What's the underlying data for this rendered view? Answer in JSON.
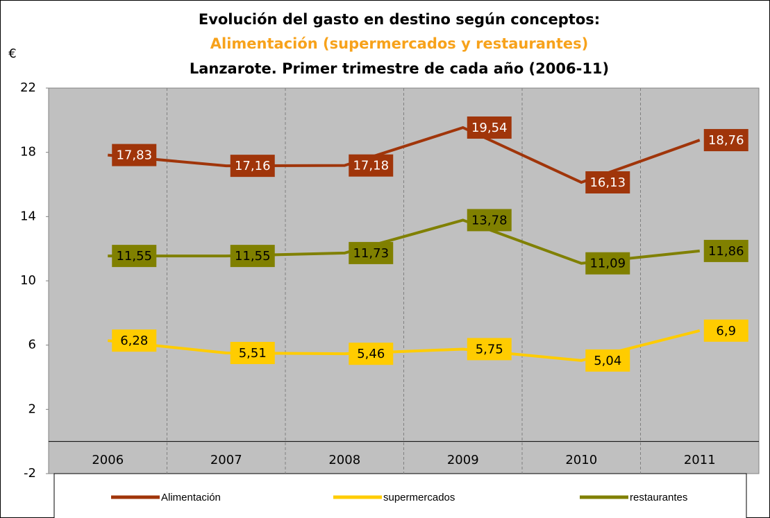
{
  "chart_data": {
    "type": "line",
    "title": "Evolución del gasto en destino según conceptos:",
    "subtitle": "Alimentación (supermercados y restaurantes)",
    "subtitle_2": "Lanzarote. Primer trimestre de cada año (2006-11)",
    "y_label": "€",
    "categories": [
      "2006",
      "2007",
      "2008",
      "2009",
      "2010",
      "2011"
    ],
    "series": [
      {
        "name": "Alimentación",
        "color": "#a0350a",
        "label_text_color": "#ffffff",
        "values": [
          17.83,
          17.16,
          17.18,
          19.54,
          16.13,
          18.76
        ],
        "value_labels": [
          "17,83",
          "17,16",
          "17,18",
          "19,54",
          "16,13",
          "18,76"
        ]
      },
      {
        "name": "supermercados",
        "color": "#ffcc00",
        "label_text_color": "#000000",
        "values": [
          6.28,
          5.51,
          5.46,
          5.75,
          5.04,
          6.9
        ],
        "value_labels": [
          "6,28",
          "5,51",
          "5,46",
          "5,75",
          "5,04",
          "6,9"
        ]
      },
      {
        "name": "restaurantes",
        "color": "#808000",
        "label_text_color": "#000000",
        "values": [
          11.55,
          11.55,
          11.73,
          13.78,
          11.09,
          11.86
        ],
        "value_labels": [
          "11,55",
          "11,55",
          "11,73",
          "13,78",
          "11,09",
          "11,86"
        ]
      }
    ],
    "ylim": [
      -2,
      22
    ],
    "yticks": [
      -2,
      2,
      6,
      10,
      14,
      18,
      22
    ],
    "legend": "bottom"
  }
}
